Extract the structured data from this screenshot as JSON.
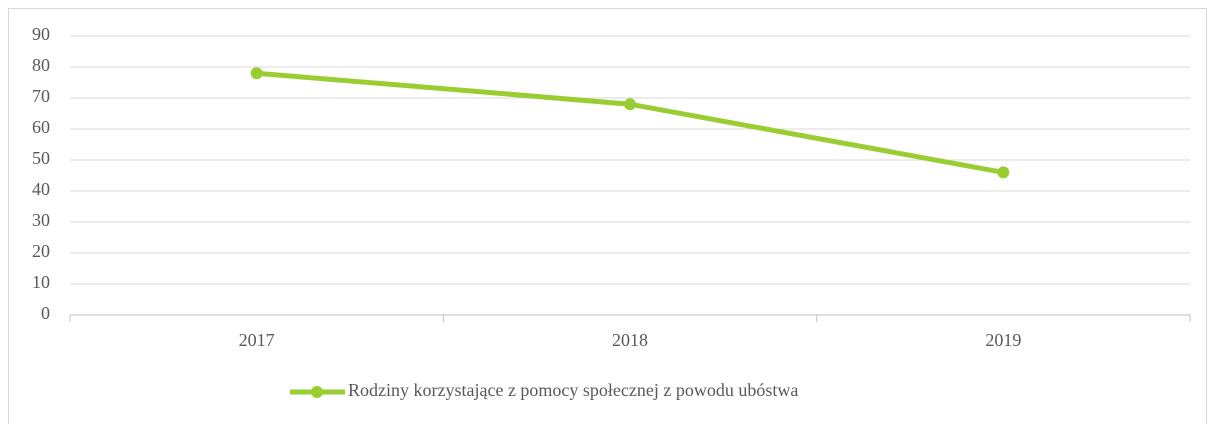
{
  "chart_data": {
    "type": "line",
    "categories": [
      "2017",
      "2018",
      "2019"
    ],
    "series": [
      {
        "name": "Rodziny korzystające z pomocy społecznej z powodu ubóstwa",
        "color": "#9acd32",
        "values": [
          78,
          68,
          46
        ]
      }
    ],
    "ylim": [
      0,
      90
    ],
    "yticks": [
      0,
      10,
      20,
      30,
      40,
      50,
      60,
      70,
      80,
      90
    ],
    "grid": true,
    "legend": "bottom"
  }
}
